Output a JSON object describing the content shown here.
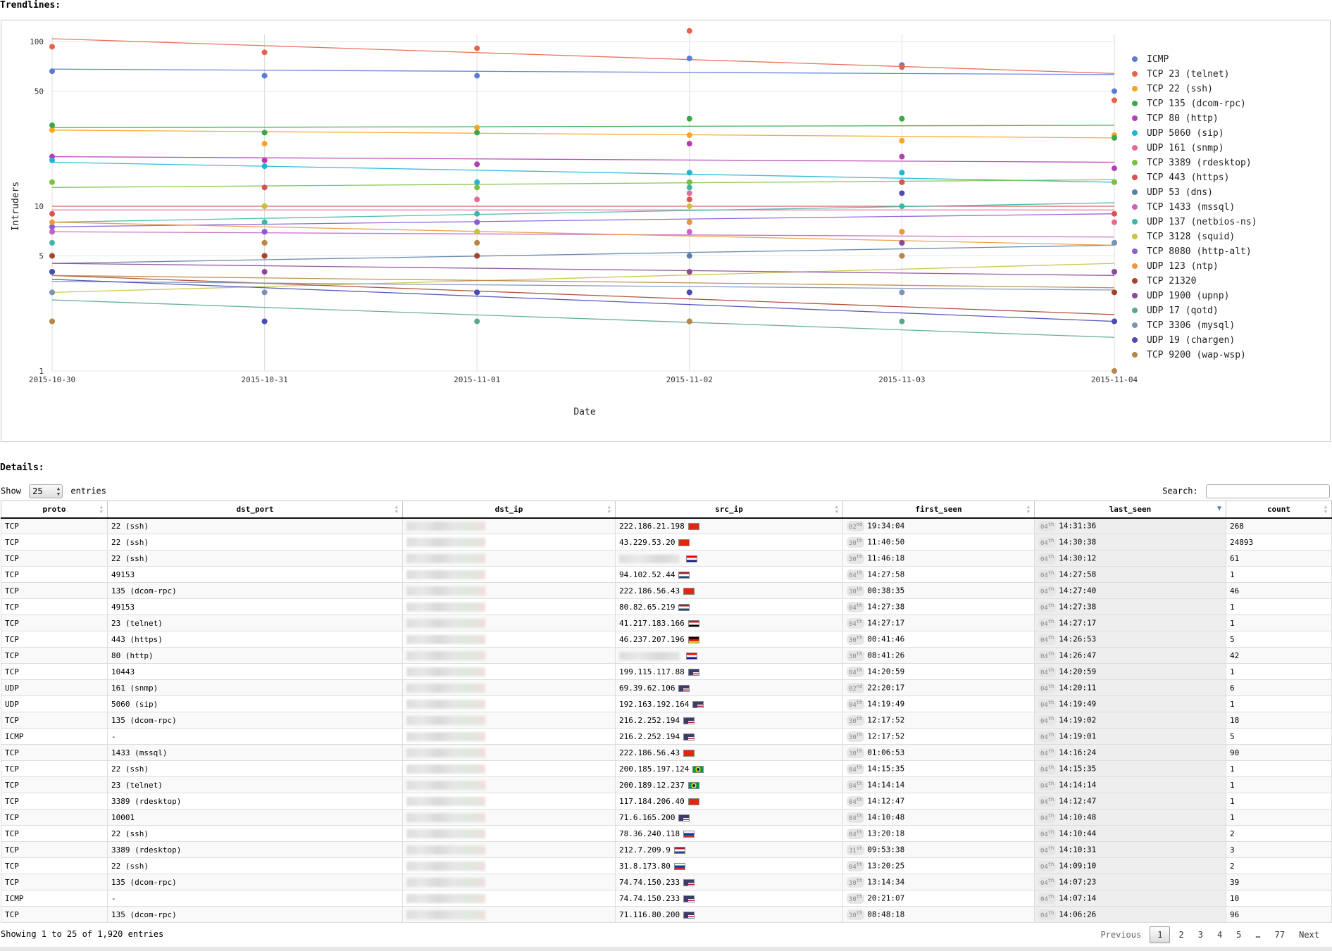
{
  "trend_title": "Trendlines:",
  "details_title": "Details:",
  "chart_data": {
    "type": "scatter",
    "xlabel": "Date",
    "ylabel": "Intruders",
    "y_scale": "log",
    "ylim": [
      1,
      100
    ],
    "y_ticks": [
      1,
      5,
      10,
      50,
      100
    ],
    "x": [
      "2015-10-30",
      "2015-10-31",
      "2015-11-01",
      "2015-11-02",
      "2015-11-03",
      "2015-11-04"
    ],
    "grid": "vertical",
    "legend_position": "right",
    "trendlines": true,
    "series": [
      {
        "name": "ICMP",
        "color": "#5b7bd5",
        "values": [
          66,
          62,
          62,
          79,
          72,
          50
        ],
        "trend": [
          68,
          63
        ]
      },
      {
        "name": "TCP 23 (telnet)",
        "color": "#e8634a",
        "values": [
          93,
          86,
          91,
          116,
          70,
          44
        ],
        "trend": [
          104,
          64
        ]
      },
      {
        "name": "TCP 22 (ssh)",
        "color": "#f5a623",
        "values": [
          29,
          24,
          30,
          27,
          25,
          27
        ],
        "trend": [
          29,
          26
        ]
      },
      {
        "name": "TCP 135 (dcom-rpc)",
        "color": "#3aa84a",
        "values": [
          31,
          28,
          28,
          34,
          34,
          26
        ],
        "trend": [
          30,
          31
        ]
      },
      {
        "name": "TCP 80 (http)",
        "color": "#b43fb4",
        "values": [
          20,
          19,
          18,
          24,
          20,
          17
        ],
        "trend": [
          20,
          18.5
        ]
      },
      {
        "name": "UDP 5060 (sip)",
        "color": "#1fb5d5",
        "values": [
          19,
          17.5,
          14,
          16,
          16,
          14
        ],
        "trend": [
          18.5,
          14
        ]
      },
      {
        "name": "UDP 161 (snmp)",
        "color": "#e46a9a",
        "values": [
          7,
          8,
          11,
          12,
          14,
          8
        ],
        "trend": [
          9.5,
          9.5
        ]
      },
      {
        "name": "TCP 3389 (rdesktop)",
        "color": "#7ac143",
        "values": [
          14,
          10,
          13,
          14,
          14,
          14
        ],
        "trend": [
          13,
          14.5
        ]
      },
      {
        "name": "TCP 443 (https)",
        "color": "#d9534f",
        "values": [
          9,
          13,
          8,
          11,
          14,
          9
        ],
        "trend": [
          10,
          10
        ]
      },
      {
        "name": "UDP 53 (dns)",
        "color": "#5a7fa8",
        "values": [
          4,
          5,
          5,
          5,
          6,
          6
        ],
        "trend": [
          4.5,
          5.8
        ]
      },
      {
        "name": "TCP 1433 (mssql)",
        "color": "#c366c3",
        "values": [
          7,
          7,
          7,
          7,
          6,
          4
        ],
        "trend": [
          7,
          6.5
        ]
      },
      {
        "name": "UDP 137 (netbios-ns)",
        "color": "#3fb7a8",
        "values": [
          6,
          8,
          9,
          13,
          10,
          6
        ],
        "trend": [
          8,
          10.5
        ]
      },
      {
        "name": "TCP 3128 (squid)",
        "color": "#c9c23a",
        "values": [
          3,
          10,
          7,
          10,
          6,
          3
        ],
        "trend": [
          3,
          4.5
        ]
      },
      {
        "name": "TCP 8080 (http-alt)",
        "color": "#8a5cd6",
        "values": [
          7.5,
          7,
          8,
          8,
          7,
          6
        ],
        "trend": [
          7.5,
          9
        ]
      },
      {
        "name": "UDP 123 (ntp)",
        "color": "#e89a3c",
        "values": [
          8,
          6,
          6,
          8,
          7,
          6
        ],
        "trend": [
          8,
          5.8
        ]
      },
      {
        "name": "TCP 21320",
        "color": "#a8432c",
        "values": [
          5,
          5,
          5,
          3,
          5,
          3
        ],
        "trend": [
          3.8,
          2.2
        ]
      },
      {
        "name": "UDP 1900 (upnp)",
        "color": "#8a4a9a",
        "values": [
          4,
          4,
          3,
          4,
          6,
          4
        ],
        "trend": [
          4.5,
          3.8
        ]
      },
      {
        "name": "UDP 17 (qotd)",
        "color": "#5aa88a",
        "values": [
          2,
          2,
          2,
          2,
          2,
          2
        ],
        "trend": [
          2.7,
          1.6
        ]
      },
      {
        "name": "TCP 3306 (mysql)",
        "color": "#7a93b8",
        "values": [
          3,
          3,
          3,
          3,
          3,
          6
        ],
        "trend": [
          3.5,
          3.1
        ]
      },
      {
        "name": "UDP 19 (chargen)",
        "color": "#4a4ab8",
        "values": [
          4,
          2,
          3,
          3,
          12,
          2
        ],
        "trend": [
          3.6,
          2
        ]
      },
      {
        "name": "TCP 9200 (wap-wsp)",
        "color": "#b8864a",
        "values": [
          2,
          6,
          6,
          2,
          5,
          1
        ],
        "trend": [
          3.8,
          3.2
        ]
      }
    ]
  },
  "controls": {
    "show_label": "Show",
    "entries_value": "25",
    "entries_label": "entries",
    "search_label": "Search:"
  },
  "table": {
    "columns": [
      "proto",
      "dst_port",
      "dst_ip",
      "src_ip",
      "first_seen",
      "last_seen",
      "count"
    ],
    "rows": [
      {
        "proto": "TCP",
        "dst_port": "22 (ssh)",
        "src_ip": "222.186.21.198",
        "flag": "cn",
        "first_day": "02",
        "first_sup": "nd",
        "first_time": "19:34:04",
        "last_day": "04",
        "last_sup": "th",
        "last_time": "14:31:36",
        "count": "268"
      },
      {
        "proto": "TCP",
        "dst_port": "22 (ssh)",
        "src_ip": "43.229.53.20",
        "flag": "hk",
        "first_day": "30",
        "first_sup": "th",
        "first_time": "11:40:50",
        "last_day": "04",
        "last_sup": "th",
        "last_time": "14:30:38",
        "count": "24893"
      },
      {
        "proto": "TCP",
        "dst_port": "22 (ssh)",
        "src_ip": "",
        "flag": "hr",
        "first_day": "30",
        "first_sup": "th",
        "first_time": "11:46:18",
        "last_day": "04",
        "last_sup": "th",
        "last_time": "14:30:12",
        "count": "61"
      },
      {
        "proto": "TCP",
        "dst_port": "49153",
        "src_ip": "94.102.52.44",
        "flag": "nl",
        "first_day": "04",
        "first_sup": "th",
        "first_time": "14:27:58",
        "last_day": "04",
        "last_sup": "th",
        "last_time": "14:27:58",
        "count": "1"
      },
      {
        "proto": "TCP",
        "dst_port": "135 (dcom-rpc)",
        "src_ip": "222.186.56.43",
        "flag": "cn",
        "first_day": "30",
        "first_sup": "th",
        "first_time": "00:38:35",
        "last_day": "04",
        "last_sup": "th",
        "last_time": "14:27:40",
        "count": "46"
      },
      {
        "proto": "TCP",
        "dst_port": "49153",
        "src_ip": "80.82.65.219",
        "flag": "nl",
        "first_day": "04",
        "first_sup": "th",
        "first_time": "14:27:38",
        "last_day": "04",
        "last_sup": "th",
        "last_time": "14:27:38",
        "count": "1"
      },
      {
        "proto": "TCP",
        "dst_port": "23 (telnet)",
        "src_ip": "41.217.183.166",
        "flag": "eg",
        "first_day": "04",
        "first_sup": "th",
        "first_time": "14:27:17",
        "last_day": "04",
        "last_sup": "th",
        "last_time": "14:27:17",
        "count": "1"
      },
      {
        "proto": "TCP",
        "dst_port": "443 (https)",
        "src_ip": "46.237.207.196",
        "flag": "de",
        "first_day": "30",
        "first_sup": "th",
        "first_time": "00:41:46",
        "last_day": "04",
        "last_sup": "th",
        "last_time": "14:26:53",
        "count": "5"
      },
      {
        "proto": "TCP",
        "dst_port": "80 (http)",
        "src_ip": "",
        "flag": "hr",
        "first_day": "30",
        "first_sup": "th",
        "first_time": "08:41:26",
        "last_day": "04",
        "last_sup": "th",
        "last_time": "14:26:47",
        "count": "42"
      },
      {
        "proto": "TCP",
        "dst_port": "10443",
        "src_ip": "199.115.117.88",
        "flag": "us",
        "first_day": "04",
        "first_sup": "th",
        "first_time": "14:20:59",
        "last_day": "04",
        "last_sup": "th",
        "last_time": "14:20:59",
        "count": "1"
      },
      {
        "proto": "UDP",
        "dst_port": "161 (snmp)",
        "src_ip": "69.39.62.106",
        "flag": "us",
        "first_day": "02",
        "first_sup": "nd",
        "first_time": "22:20:17",
        "last_day": "04",
        "last_sup": "th",
        "last_time": "14:20:11",
        "count": "6"
      },
      {
        "proto": "UDP",
        "dst_port": "5060 (sip)",
        "src_ip": "192.163.192.164",
        "flag": "us",
        "first_day": "04",
        "first_sup": "th",
        "first_time": "14:19:49",
        "last_day": "04",
        "last_sup": "th",
        "last_time": "14:19:49",
        "count": "1"
      },
      {
        "proto": "TCP",
        "dst_port": "135 (dcom-rpc)",
        "src_ip": "216.2.252.194",
        "flag": "us",
        "first_day": "30",
        "first_sup": "th",
        "first_time": "12:17:52",
        "last_day": "04",
        "last_sup": "th",
        "last_time": "14:19:02",
        "count": "18"
      },
      {
        "proto": "ICMP",
        "dst_port": "-",
        "src_ip": "216.2.252.194",
        "flag": "us",
        "first_day": "30",
        "first_sup": "th",
        "first_time": "12:17:52",
        "last_day": "04",
        "last_sup": "th",
        "last_time": "14:19:01",
        "count": "5"
      },
      {
        "proto": "TCP",
        "dst_port": "1433 (mssql)",
        "src_ip": "222.186.56.43",
        "flag": "cn",
        "first_day": "30",
        "first_sup": "th",
        "first_time": "01:06:53",
        "last_day": "04",
        "last_sup": "th",
        "last_time": "14:16:24",
        "count": "90"
      },
      {
        "proto": "TCP",
        "dst_port": "22 (ssh)",
        "src_ip": "200.185.197.124",
        "flag": "br",
        "first_day": "04",
        "first_sup": "th",
        "first_time": "14:15:35",
        "last_day": "04",
        "last_sup": "th",
        "last_time": "14:15:35",
        "count": "1"
      },
      {
        "proto": "TCP",
        "dst_port": "23 (telnet)",
        "src_ip": "200.189.12.237",
        "flag": "br",
        "first_day": "04",
        "first_sup": "th",
        "first_time": "14:14:14",
        "last_day": "04",
        "last_sup": "th",
        "last_time": "14:14:14",
        "count": "1"
      },
      {
        "proto": "TCP",
        "dst_port": "3389 (rdesktop)",
        "src_ip": "117.184.206.40",
        "flag": "cn",
        "first_day": "04",
        "first_sup": "th",
        "first_time": "14:12:47",
        "last_day": "04",
        "last_sup": "th",
        "last_time": "14:12:47",
        "count": "1"
      },
      {
        "proto": "TCP",
        "dst_port": "10001",
        "src_ip": "71.6.165.200",
        "flag": "us",
        "first_day": "04",
        "first_sup": "th",
        "first_time": "14:10:48",
        "last_day": "04",
        "last_sup": "th",
        "last_time": "14:10:48",
        "count": "1"
      },
      {
        "proto": "TCP",
        "dst_port": "22 (ssh)",
        "src_ip": "78.36.240.118",
        "flag": "ru",
        "first_day": "04",
        "first_sup": "th",
        "first_time": "13:20:18",
        "last_day": "04",
        "last_sup": "th",
        "last_time": "14:10:44",
        "count": "2"
      },
      {
        "proto": "TCP",
        "dst_port": "3389 (rdesktop)",
        "src_ip": "212.7.209.9",
        "flag": "nl",
        "first_day": "31",
        "first_sup": "st",
        "first_time": "09:53:38",
        "last_day": "04",
        "last_sup": "th",
        "last_time": "14:10:31",
        "count": "3"
      },
      {
        "proto": "TCP",
        "dst_port": "22 (ssh)",
        "src_ip": "31.8.173.80",
        "flag": "ru",
        "first_day": "04",
        "first_sup": "th",
        "first_time": "13:20:25",
        "last_day": "04",
        "last_sup": "th",
        "last_time": "14:09:10",
        "count": "2"
      },
      {
        "proto": "TCP",
        "dst_port": "135 (dcom-rpc)",
        "src_ip": "74.74.150.233",
        "flag": "us",
        "first_day": "30",
        "first_sup": "th",
        "first_time": "13:14:34",
        "last_day": "04",
        "last_sup": "th",
        "last_time": "14:07:23",
        "count": "39"
      },
      {
        "proto": "ICMP",
        "dst_port": "-",
        "src_ip": "74.74.150.233",
        "flag": "us",
        "first_day": "30",
        "first_sup": "th",
        "first_time": "20:21:07",
        "last_day": "04",
        "last_sup": "th",
        "last_time": "14:07:14",
        "count": "10"
      },
      {
        "proto": "TCP",
        "dst_port": "135 (dcom-rpc)",
        "src_ip": "71.116.80.200",
        "flag": "us",
        "first_day": "30",
        "first_sup": "th",
        "first_time": "08:48:18",
        "last_day": "04",
        "last_sup": "th",
        "last_time": "14:06:26",
        "count": "96"
      }
    ]
  },
  "footer": {
    "info": "Showing 1 to 25 of 1,920 entries",
    "previous": "Previous",
    "pages": [
      "1",
      "2",
      "3",
      "4",
      "5",
      "…",
      "77"
    ],
    "current_page": "1",
    "next": "Next"
  }
}
